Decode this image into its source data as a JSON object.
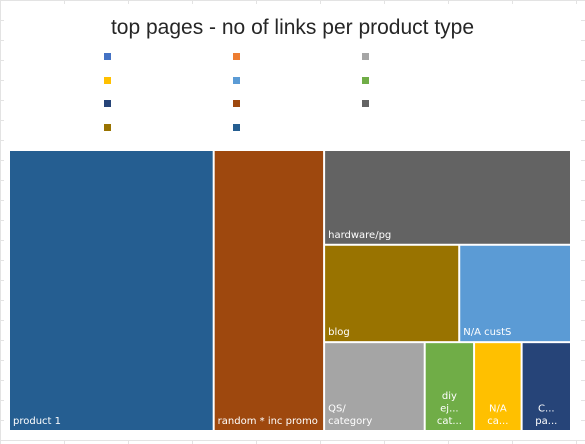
{
  "chart_data": {
    "type": "treemap",
    "title": "top pages - no of links per product type",
    "series": [
      {
        "name": "product 1",
        "value": 35.4,
        "color": "#255e91",
        "label_lines": [
          "product 1"
        ]
      },
      {
        "name": "random * inc promo",
        "value": 19.1,
        "color": "#9e480e",
        "label_lines": [
          "random * inc promo"
        ]
      },
      {
        "name": "hardware/pg",
        "value": 14.4,
        "color": "#636363",
        "label_lines": [
          "hardware/pg"
        ]
      },
      {
        "name": "blog",
        "value": 8.1,
        "color": "#997300",
        "label_lines": [
          "blog"
        ]
      },
      {
        "name": "N/A custS",
        "value": 6.7,
        "color": "#5b9bd5",
        "label_lines": [
          "N/A custS"
        ]
      },
      {
        "name": "QS/ category",
        "value": 5.5,
        "color": "#a5a5a5",
        "label_lines": [
          "QS/",
          "category"
        ]
      },
      {
        "name": "diy ej... cat...",
        "value": 2.7,
        "color": "#70ad47",
        "label_lines": [
          "diy",
          "ej...",
          "cat..."
        ]
      },
      {
        "name": "N/A ca...",
        "value": 2.6,
        "color": "#ffc000",
        "label_lines": [
          "N/A",
          "ca..."
        ]
      },
      {
        "name": "C... pa...",
        "value": 2.7,
        "color": "#264478",
        "label_lines": [
          "C...",
          "pa..."
        ]
      }
    ],
    "legend": {
      "placement": "top",
      "entries": [
        {
          "color": "#4472c4",
          "label": ""
        },
        {
          "color": "#ed7d31",
          "label": ""
        },
        {
          "color": "#a5a5a5",
          "label": ""
        },
        {
          "color": "#ffc000",
          "label": ""
        },
        {
          "color": "#5b9bd5",
          "label": ""
        },
        {
          "color": "#70ad47",
          "label": ""
        },
        {
          "color": "#264478",
          "label": ""
        },
        {
          "color": "#9e480e",
          "label": ""
        },
        {
          "color": "#636363",
          "label": ""
        },
        {
          "color": "#997300",
          "label": ""
        },
        {
          "color": "#255e91",
          "label": ""
        }
      ]
    }
  }
}
